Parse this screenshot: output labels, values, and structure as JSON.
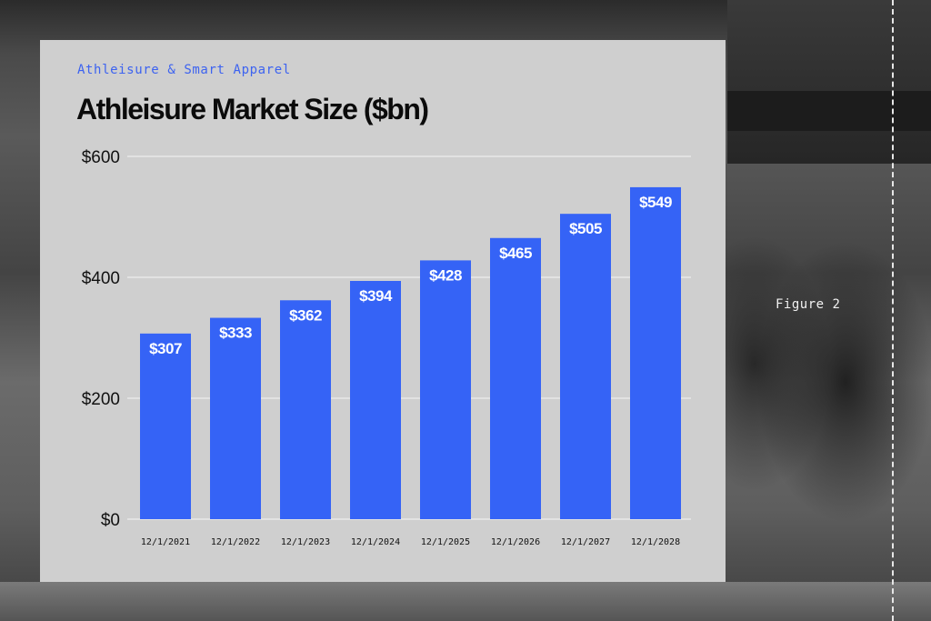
{
  "header": {
    "eyebrow": "Athleisure & Smart Apparel",
    "title": "Athleisure Market Size ($bn)"
  },
  "side_label": "Figure 2",
  "colors": {
    "bar": "#3563F6",
    "accent_text": "#3d63f0",
    "card_bg": "#cfcfcf",
    "gridline": "#e8e8e8"
  },
  "chart_data": {
    "type": "bar",
    "title": "Athleisure Market Size ($bn)",
    "categories": [
      "12/1/2021",
      "12/1/2022",
      "12/1/2023",
      "12/1/2024",
      "12/1/2025",
      "12/1/2026",
      "12/1/2027",
      "12/1/2028"
    ],
    "values": [
      307,
      333,
      362,
      394,
      428,
      465,
      505,
      549
    ],
    "data_labels": [
      "$307",
      "$333",
      "$362",
      "$394",
      "$428",
      "$465",
      "$505",
      "$549"
    ],
    "y_ticks": [
      0,
      200,
      400,
      600
    ],
    "y_tick_labels": [
      "$0",
      "$200",
      "$400",
      "$600"
    ],
    "ylim": [
      0,
      600
    ],
    "xlabel": "",
    "ylabel": "",
    "grid": true,
    "legend": "none"
  }
}
